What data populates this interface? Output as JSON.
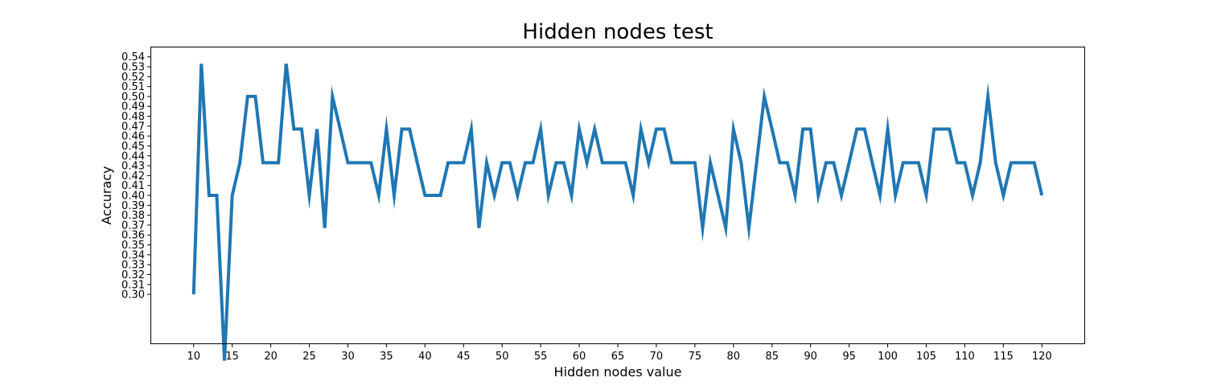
{
  "chart_data": {
    "type": "line",
    "title": "Hidden nodes test",
    "xlabel": "Hidden nodes value",
    "ylabel": "Accuracy",
    "xlim": [
      4.5,
      125.5
    ],
    "ylim": [
      0.2505,
      0.5495
    ],
    "x_ticks": [
      10,
      15,
      20,
      25,
      30,
      35,
      40,
      45,
      50,
      55,
      60,
      65,
      70,
      75,
      80,
      85,
      90,
      95,
      100,
      105,
      110,
      115,
      120
    ],
    "x_tick_labels": [
      "10",
      "15",
      "20",
      "25",
      "30",
      "35",
      "40",
      "45",
      "50",
      "55",
      "60",
      "65",
      "70",
      "75",
      "80",
      "85",
      "90",
      "95",
      "100",
      "105",
      "110",
      "115",
      "120"
    ],
    "y_ticks": [
      0.3,
      0.31,
      0.32,
      0.33,
      0.34,
      0.35,
      0.36,
      0.37,
      0.38,
      0.39,
      0.4,
      0.41,
      0.42,
      0.43,
      0.44,
      0.45,
      0.46,
      0.47,
      0.48,
      0.49,
      0.5,
      0.51,
      0.52,
      0.53,
      0.54
    ],
    "y_tick_labels": [
      "0.30",
      "0.31",
      "0.32",
      "0.33",
      "0.34",
      "0.35",
      "0.36",
      "0.37",
      "0.38",
      "0.39",
      "0.40",
      "0.41",
      "0.42",
      "0.43",
      "0.44",
      "0.45",
      "0.46",
      "0.47",
      "0.48",
      "0.49",
      "0.50",
      "0.51",
      "0.52",
      "0.53",
      "0.54"
    ],
    "grid": false,
    "series": [
      {
        "color": "#1f77b4",
        "x": [
          10,
          11,
          12,
          13,
          14,
          15,
          16,
          17,
          18,
          19,
          20,
          21,
          22,
          23,
          24,
          25,
          26,
          27,
          28,
          29,
          30,
          31,
          32,
          33,
          34,
          35,
          36,
          37,
          38,
          39,
          40,
          41,
          42,
          43,
          44,
          45,
          46,
          47,
          48,
          49,
          50,
          51,
          52,
          53,
          54,
          55,
          56,
          57,
          58,
          59,
          60,
          61,
          62,
          63,
          64,
          65,
          66,
          67,
          68,
          69,
          70,
          71,
          72,
          73,
          74,
          75,
          76,
          77,
          78,
          79,
          80,
          81,
          82,
          83,
          84,
          85,
          86,
          87,
          88,
          89,
          90,
          91,
          92,
          93,
          94,
          95,
          96,
          97,
          98,
          99,
          100,
          101,
          102,
          103,
          104,
          105,
          106,
          107,
          108,
          109,
          110,
          111,
          112,
          113,
          114,
          115,
          116,
          117,
          118,
          119,
          120
        ],
        "values": [
          0.3,
          0.533,
          0.4,
          0.4,
          0.233,
          0.4,
          0.433,
          0.5,
          0.5,
          0.433,
          0.433,
          0.433,
          0.533,
          0.467,
          0.467,
          0.4,
          0.467,
          0.367,
          0.5,
          0.467,
          0.433,
          0.433,
          0.433,
          0.433,
          0.4,
          0.467,
          0.4,
          0.467,
          0.467,
          0.433,
          0.4,
          0.4,
          0.4,
          0.433,
          0.433,
          0.433,
          0.467,
          0.367,
          0.433,
          0.4,
          0.433,
          0.433,
          0.4,
          0.433,
          0.433,
          0.467,
          0.4,
          0.433,
          0.433,
          0.4,
          0.467,
          0.433,
          0.467,
          0.433,
          0.433,
          0.433,
          0.433,
          0.4,
          0.467,
          0.433,
          0.467,
          0.467,
          0.433,
          0.433,
          0.433,
          0.433,
          0.367,
          0.433,
          0.4,
          0.367,
          0.467,
          0.433,
          0.367,
          0.433,
          0.5,
          0.467,
          0.433,
          0.433,
          0.4,
          0.467,
          0.467,
          0.4,
          0.433,
          0.433,
          0.4,
          0.433,
          0.467,
          0.467,
          0.433,
          0.4,
          0.467,
          0.4,
          0.433,
          0.433,
          0.433,
          0.4,
          0.467,
          0.467,
          0.467,
          0.433,
          0.433,
          0.4,
          0.433,
          0.5,
          0.433,
          0.4,
          0.433,
          0.433,
          0.433,
          0.433,
          0.4
        ]
      }
    ]
  }
}
